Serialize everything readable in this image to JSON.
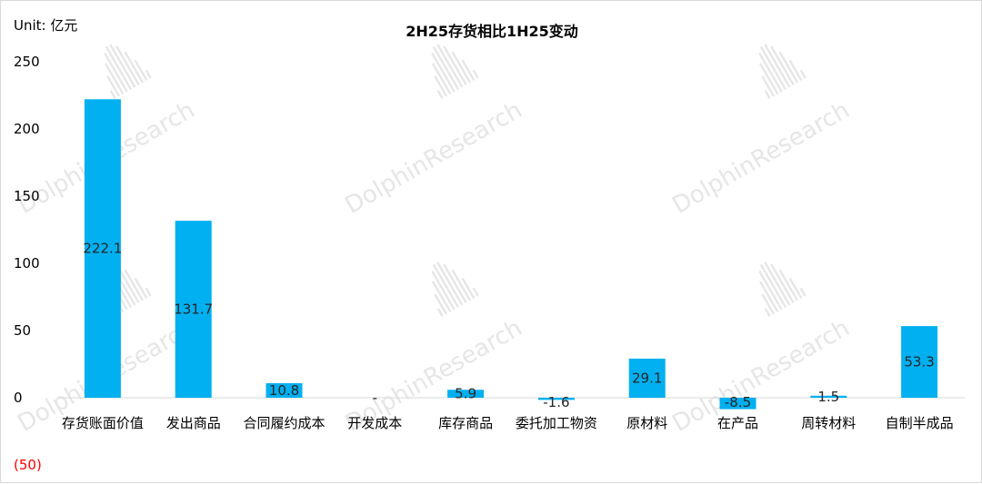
{
  "unit_label": "Unit: 亿元",
  "chart_data": {
    "type": "bar",
    "title": "2H25存货相比1H25变动",
    "categories": [
      "存货账面价值",
      "发出商品",
      "合同履约成本",
      "开发成本",
      "库存商品",
      "委托加工物资",
      "原材料",
      "在产品",
      "周转材料",
      "自制半成品"
    ],
    "values": [
      222.1,
      131.7,
      10.8,
      0,
      5.9,
      -1.6,
      29.1,
      -8.5,
      1.5,
      53.3
    ],
    "data_labels": [
      "222.1",
      "131.7",
      "10.8",
      "-",
      "5.9",
      "-1.6",
      "29.1",
      "-8.5",
      "1.5",
      "53.3"
    ],
    "ylim": [
      -50,
      250
    ],
    "yticks": [
      250,
      200,
      150,
      100,
      50,
      0,
      -50
    ],
    "ytick_labels": [
      "250",
      "200",
      "150",
      "100",
      "50",
      "0",
      "(50)"
    ],
    "grid": false,
    "colors": {
      "bar": "#00B0F0",
      "axis": "#d9d9d9",
      "negative_tick": "#FF0000",
      "watermark": "#e6e6e6"
    },
    "watermark": "DolphinResearch"
  }
}
